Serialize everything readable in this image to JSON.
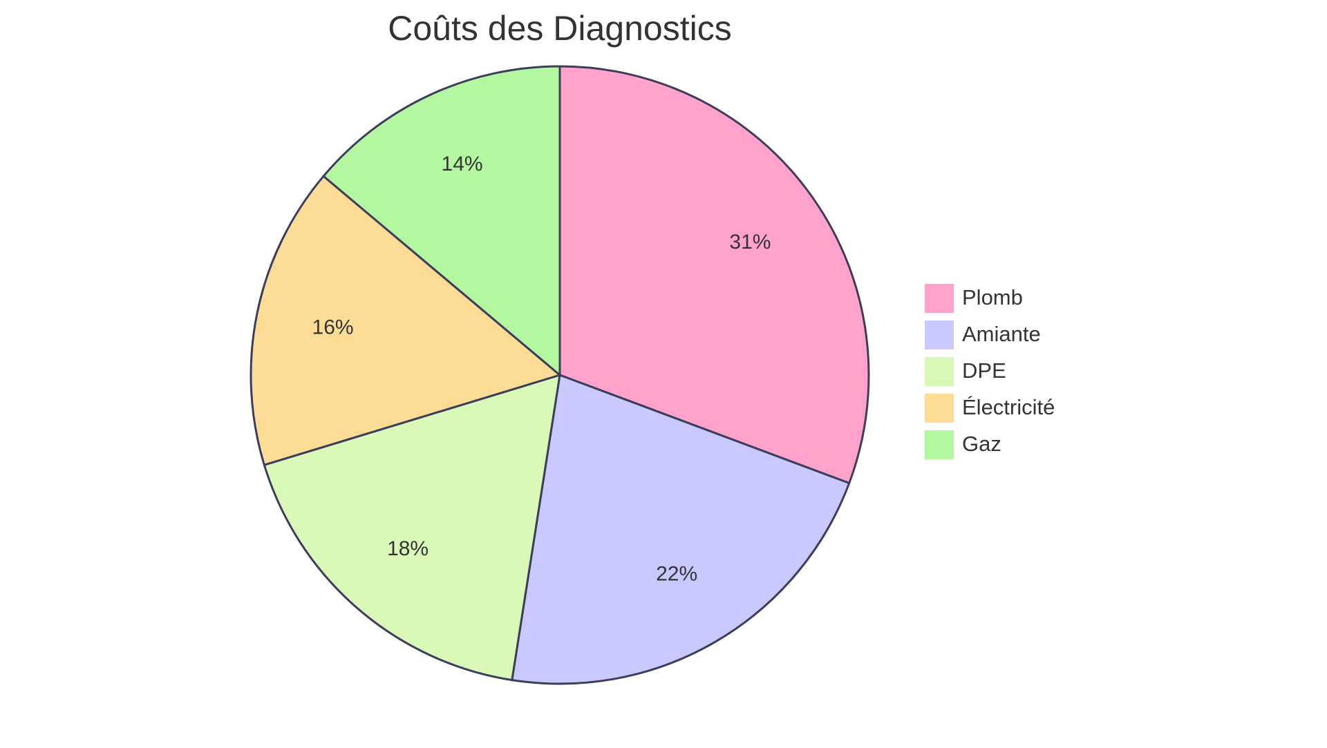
{
  "chart_data": {
    "type": "pie",
    "title": "Coûts des Diagnostics",
    "legend_position": "right",
    "slices": [
      {
        "label": "Plomb",
        "value": 31,
        "percent_label": "31%",
        "color": "#ffa3cd"
      },
      {
        "label": "Amiante",
        "value": 22,
        "percent_label": "22%",
        "color": "#c9c9ff"
      },
      {
        "label": "DPE",
        "value": 18,
        "percent_label": "18%",
        "color": "#daf9b9"
      },
      {
        "label": "Électricité",
        "value": 16,
        "percent_label": "16%",
        "color": "#fddd95"
      },
      {
        "label": "Gaz",
        "value": 14,
        "percent_label": "14%",
        "color": "#b3f8a0"
      }
    ]
  }
}
